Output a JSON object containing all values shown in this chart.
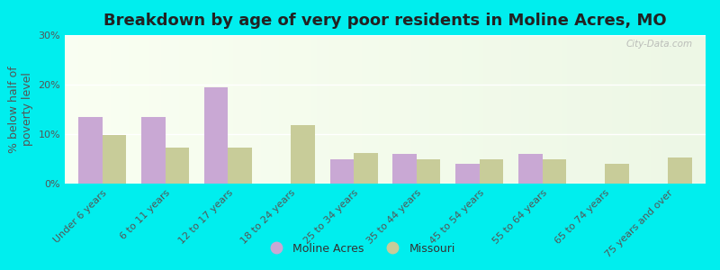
{
  "title": "Breakdown by age of very poor residents in Moline Acres, MO",
  "ylabel": "% below half of\npoverty level",
  "categories": [
    "Under 6 years",
    "6 to 11 years",
    "12 to 17 years",
    "18 to 24 years",
    "25 to 34 years",
    "35 to 44 years",
    "45 to 54 years",
    "55 to 64 years",
    "65 to 74 years",
    "75 years and over"
  ],
  "moline_acres": [
    13.5,
    13.5,
    19.5,
    0.0,
    5.0,
    6.0,
    4.0,
    6.0,
    0.0,
    0.0
  ],
  "missouri": [
    9.8,
    7.2,
    7.2,
    11.8,
    6.2,
    5.0,
    5.0,
    5.0,
    4.0,
    5.2
  ],
  "moline_color": "#c9a8d4",
  "missouri_color": "#c8cc99",
  "background_outer": "#00eeee",
  "ylim": [
    0,
    30
  ],
  "yticks": [
    0,
    10,
    20,
    30
  ],
  "ytick_labels": [
    "0%",
    "10%",
    "20%",
    "30%"
  ],
  "bar_width": 0.38,
  "title_fontsize": 13,
  "axis_label_fontsize": 9,
  "tick_fontsize": 8,
  "legend_labels": [
    "Moline Acres",
    "Missouri"
  ],
  "watermark": "City-Data.com"
}
